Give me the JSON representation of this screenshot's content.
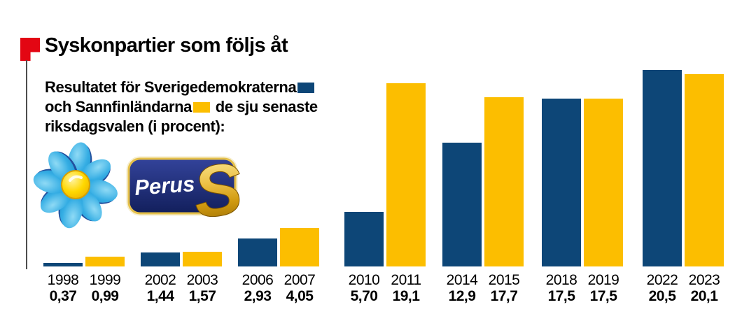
{
  "header": {
    "title": "Syskonpartier som följs åt"
  },
  "subtitle": {
    "line1": "Resultatet för Sverigedemokraterna",
    "line2a": "och Sannfinländarna",
    "line2b": "de sju senaste",
    "line3": "riksdagsvalen (i procent):"
  },
  "colors": {
    "sd_blue": "#0d4677",
    "pf_yellow": "#fcbe00",
    "flag_red": "#e30613"
  },
  "logos": {
    "sd_name": "Sverigedemokraterna",
    "pf_name": "Sannfinländarna",
    "pf_text": "Perus",
    "pf_s": "S"
  },
  "chart_data": {
    "type": "bar",
    "title": "Syskonpartier som följs åt",
    "subtitle": "Resultatet för Sverigedemokraterna och Sannfinländarna de sju senaste riksdagsvalen (i procent)",
    "unit": "percent",
    "grid": false,
    "axis_lines": false,
    "legend_position": "inline-in-subtitle",
    "ylim": [
      0,
      20.5
    ],
    "series": [
      {
        "name": "Sverigedemokraterna",
        "color_key": "sd_blue",
        "points": [
          {
            "year": "1998",
            "value": 0.37,
            "label": "0,37"
          },
          {
            "year": "2002",
            "value": 1.44,
            "label": "1,44"
          },
          {
            "year": "2006",
            "value": 2.93,
            "label": "2,93"
          },
          {
            "year": "2010",
            "value": 5.7,
            "label": "5,70"
          },
          {
            "year": "2014",
            "value": 12.9,
            "label": "12,9"
          },
          {
            "year": "2018",
            "value": 17.5,
            "label": "17,5"
          },
          {
            "year": "2022",
            "value": 20.5,
            "label": "20,5"
          }
        ]
      },
      {
        "name": "Sannfinländarna",
        "color_key": "pf_yellow",
        "points": [
          {
            "year": "1999",
            "value": 0.99,
            "label": "0,99"
          },
          {
            "year": "2003",
            "value": 1.57,
            "label": "1,57"
          },
          {
            "year": "2007",
            "value": 4.05,
            "label": "4,05"
          },
          {
            "year": "2011",
            "value": 19.1,
            "label": "19,1"
          },
          {
            "year": "2015",
            "value": 17.7,
            "label": "17,7"
          },
          {
            "year": "2019",
            "value": 17.5,
            "label": "17,5"
          },
          {
            "year": "2023",
            "value": 20.1,
            "label": "20,1"
          }
        ]
      }
    ]
  }
}
